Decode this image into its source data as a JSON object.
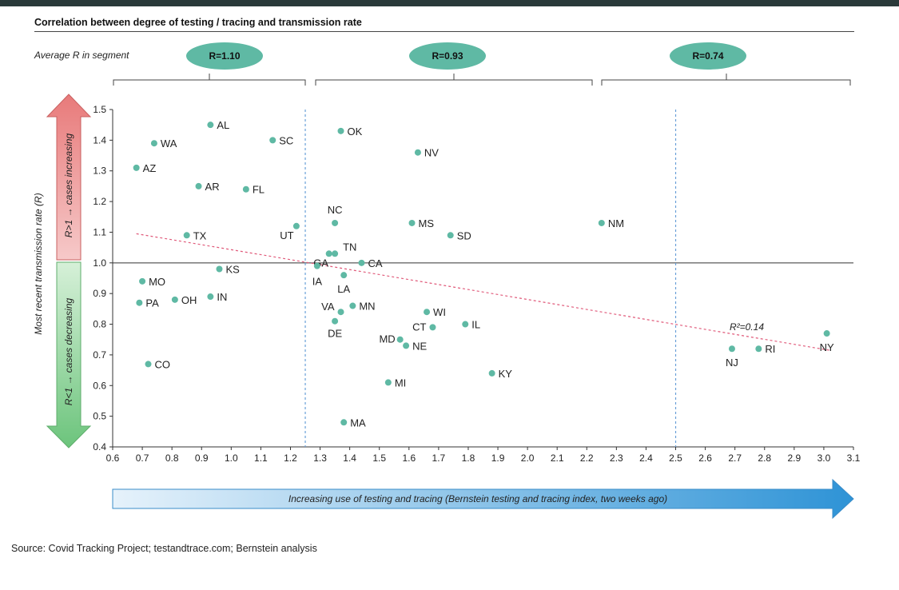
{
  "title": "Correlation between degree of testing / tracing and transmission rate",
  "segment_label": "Average R in segment",
  "segments": [
    {
      "label": "R=1.10"
    },
    {
      "label": "R=0.93"
    },
    {
      "label": "R=0.74"
    }
  ],
  "y_arrow_up_label": "R>1 → cases increasing",
  "y_arrow_down_label": "R<1 → cases decreasing",
  "x_arrow_label": "Increasing use of testing and tracing (Bernstein testing and tracing index, two weeks ago)",
  "source": "Source: Covid Tracking Project; testandtrace.com; Bernstein analysis",
  "colors": {
    "point": "#5fb9a4",
    "trend": "#e05a7a",
    "divider": "#6a9fd8",
    "arrow_up": "#e87a7a",
    "arrow_down": "#7ccf8a",
    "x_arrow": "#3a9ad9"
  },
  "chart_data": {
    "type": "scatter",
    "xlabel": "",
    "ylabel": "Most recent transmission rate (R)",
    "xlim": [
      0.6,
      3.1
    ],
    "ylim": [
      0.4,
      1.5
    ],
    "xticks": [
      "0.6",
      "0.7",
      "0.8",
      "0.9",
      "1.0",
      "1.1",
      "1.2",
      "1.3",
      "1.4",
      "1.5",
      "1.6",
      "1.7",
      "1.8",
      "1.9",
      "2.0",
      "2.1",
      "2.2",
      "2.3",
      "2.4",
      "2.5",
      "2.6",
      "2.7",
      "2.8",
      "2.9",
      "3.0",
      "3.1"
    ],
    "yticks": [
      "0.4",
      "0.5",
      "0.6",
      "0.7",
      "0.8",
      "0.9",
      "1.0",
      "1.1",
      "1.2",
      "1.3",
      "1.4",
      "1.5"
    ],
    "reference_line_y": 1.0,
    "segment_dividers_x": [
      1.25,
      2.5
    ],
    "trendline": {
      "x": [
        0.68,
        3.02
      ],
      "y": [
        1.095,
        0.715
      ],
      "label": "R²=0.14"
    },
    "points": [
      {
        "label": "AL",
        "x": 0.93,
        "y": 1.45
      },
      {
        "label": "WA",
        "x": 0.74,
        "y": 1.39
      },
      {
        "label": "SC",
        "x": 1.14,
        "y": 1.4
      },
      {
        "label": "AZ",
        "x": 0.68,
        "y": 1.31
      },
      {
        "label": "AR",
        "x": 0.89,
        "y": 1.25
      },
      {
        "label": "FL",
        "x": 1.05,
        "y": 1.24
      },
      {
        "label": "TX",
        "x": 0.85,
        "y": 1.09
      },
      {
        "label": "UT",
        "x": 1.22,
        "y": 1.12
      },
      {
        "label": "OK",
        "x": 1.37,
        "y": 1.43
      },
      {
        "label": "NV",
        "x": 1.63,
        "y": 1.36
      },
      {
        "label": "NC",
        "x": 1.35,
        "y": 1.13
      },
      {
        "label": "MS",
        "x": 1.61,
        "y": 1.13
      },
      {
        "label": "SD",
        "x": 1.74,
        "y": 1.09
      },
      {
        "label": "NM",
        "x": 2.25,
        "y": 1.13
      },
      {
        "label": "GA",
        "x": 1.33,
        "y": 1.03
      },
      {
        "label": "TN",
        "x": 1.35,
        "y": 1.03
      },
      {
        "label": "CA",
        "x": 1.44,
        "y": 1.0
      },
      {
        "label": "IA",
        "x": 1.29,
        "y": 0.99
      },
      {
        "label": "LA",
        "x": 1.38,
        "y": 0.96
      },
      {
        "label": "KS",
        "x": 0.96,
        "y": 0.98
      },
      {
        "label": "MO",
        "x": 0.7,
        "y": 0.94
      },
      {
        "label": "PA",
        "x": 0.69,
        "y": 0.87
      },
      {
        "label": "OH",
        "x": 0.81,
        "y": 0.88
      },
      {
        "label": "IN",
        "x": 0.93,
        "y": 0.89
      },
      {
        "label": "VA",
        "x": 1.37,
        "y": 0.84
      },
      {
        "label": "MN",
        "x": 1.41,
        "y": 0.86
      },
      {
        "label": "DE",
        "x": 1.35,
        "y": 0.81
      },
      {
        "label": "WI",
        "x": 1.66,
        "y": 0.84
      },
      {
        "label": "CT",
        "x": 1.68,
        "y": 0.79
      },
      {
        "label": "IL",
        "x": 1.79,
        "y": 0.8
      },
      {
        "label": "MD",
        "x": 1.57,
        "y": 0.75
      },
      {
        "label": "NE",
        "x": 1.59,
        "y": 0.73
      },
      {
        "label": "CO",
        "x": 0.72,
        "y": 0.67
      },
      {
        "label": "KY",
        "x": 1.88,
        "y": 0.64
      },
      {
        "label": "MI",
        "x": 1.53,
        "y": 0.61
      },
      {
        "label": "MA",
        "x": 1.38,
        "y": 0.48
      },
      {
        "label": "NJ",
        "x": 2.69,
        "y": 0.72
      },
      {
        "label": "RI",
        "x": 2.78,
        "y": 0.72
      },
      {
        "label": "NY",
        "x": 3.01,
        "y": 0.77
      }
    ]
  }
}
